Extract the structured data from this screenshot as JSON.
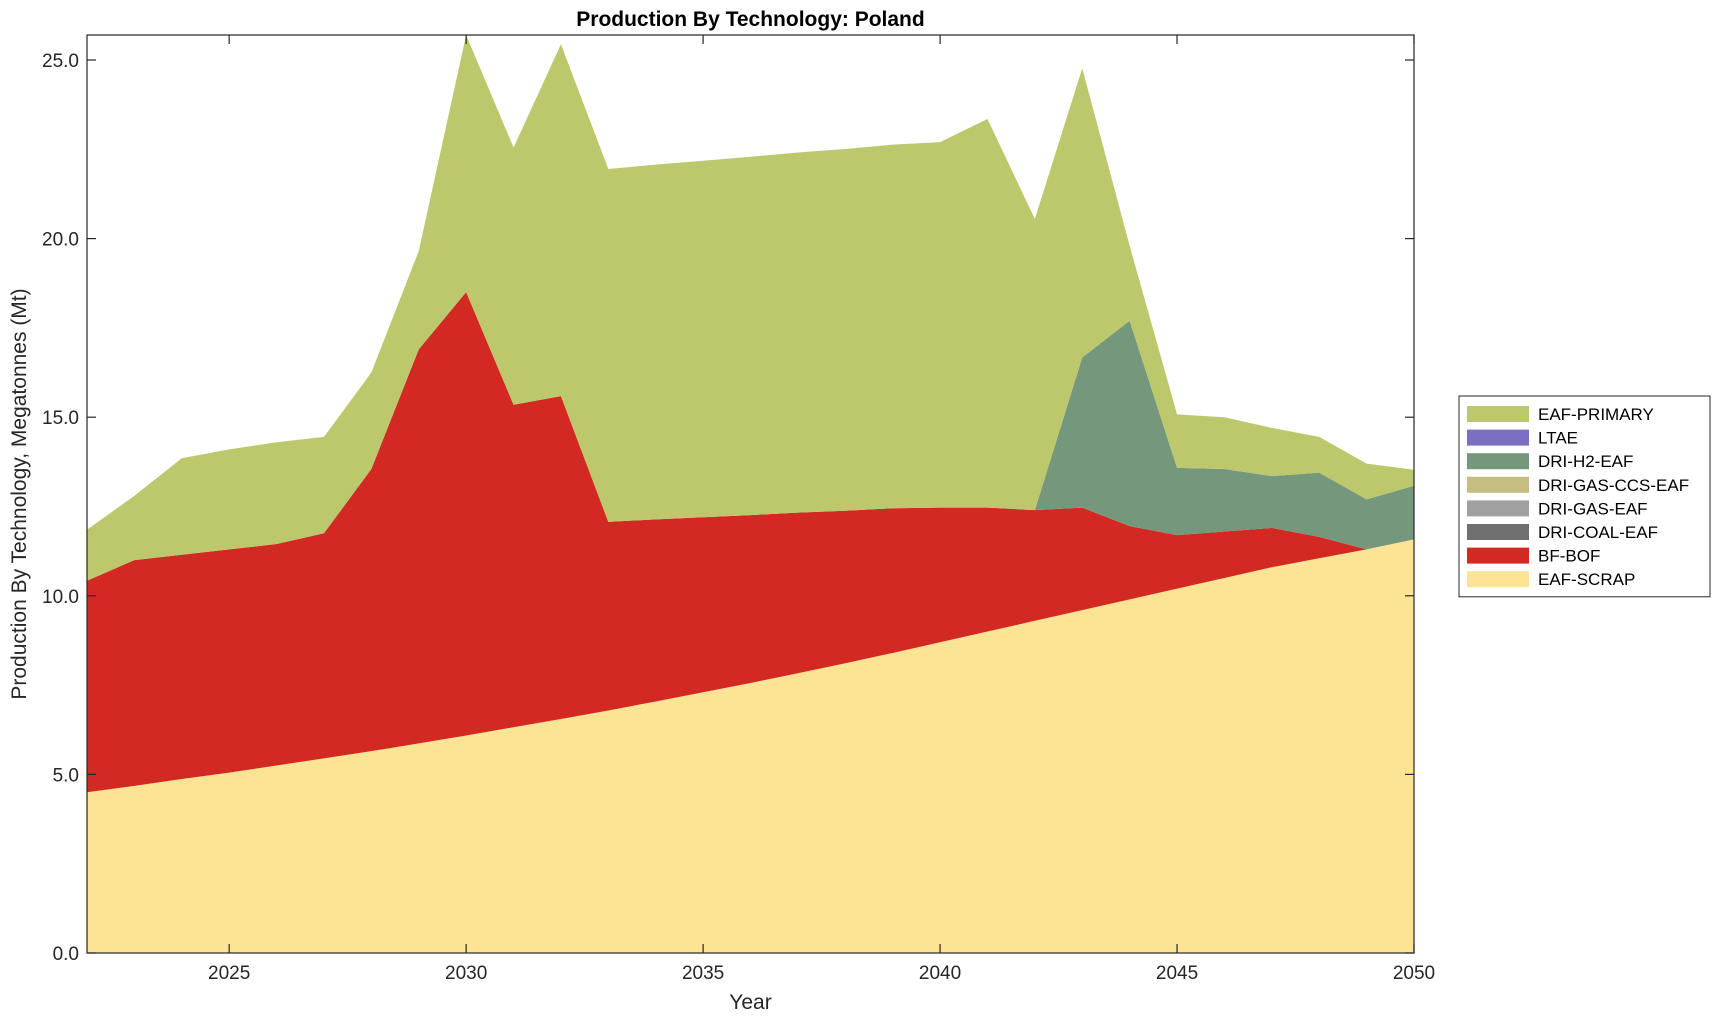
{
  "chart_data": {
    "type": "area",
    "stacked": true,
    "title": "Production By Technology: Poland",
    "xlabel": "Year",
    "ylabel": "Production By Technology, Megatonnes (Mt)",
    "xlim": [
      2022,
      2050
    ],
    "ylim": [
      0,
      25.7
    ],
    "xticks": [
      2025,
      2030,
      2035,
      2040,
      2045,
      2050
    ],
    "yticks": [
      0,
      5,
      10,
      15,
      20,
      25
    ],
    "ytick_labels": [
      "0.0",
      "5.0",
      "10.0",
      "15.0",
      "20.0",
      "25.0"
    ],
    "grid": false,
    "legend_position": "right (outside plot, vertically centered)",
    "x": [
      2022,
      2023,
      2024,
      2025,
      2026,
      2027,
      2028,
      2029,
      2030,
      2031,
      2032,
      2033,
      2034,
      2035,
      2036,
      2037,
      2038,
      2039,
      2040,
      2041,
      2042,
      2043,
      2044,
      2045,
      2046,
      2047,
      2048,
      2049,
      2050
    ],
    "series": [
      {
        "name": "EAF-SCRAP",
        "color": "#fde394",
        "values": [
          4.5,
          4.68,
          4.87,
          5.05,
          5.25,
          5.45,
          5.65,
          5.87,
          6.09,
          6.32,
          6.55,
          6.79,
          7.04,
          7.3,
          7.56,
          7.83,
          8.11,
          8.4,
          8.7,
          9.0,
          9.3,
          9.6,
          9.9,
          10.2,
          10.5,
          10.8,
          11.05,
          11.3,
          11.58
        ]
      },
      {
        "name": "BF-BOF",
        "color": "#d22a23",
        "values": [
          5.92,
          6.32,
          6.28,
          6.25,
          6.2,
          6.3,
          7.9,
          11.03,
          12.41,
          9.03,
          9.04,
          5.28,
          5.1,
          4.9,
          4.7,
          4.5,
          4.27,
          4.05,
          3.77,
          3.47,
          3.1,
          2.87,
          2.05,
          1.5,
          1.3,
          1.1,
          0.6,
          0.0,
          0.0
        ]
      },
      {
        "name": "DRI-COAL-EAF",
        "color": "#707070",
        "values": [
          0,
          0,
          0,
          0,
          0,
          0,
          0,
          0,
          0,
          0,
          0,
          0,
          0,
          0,
          0,
          0,
          0,
          0,
          0,
          0,
          0,
          0,
          0,
          0,
          0,
          0,
          0,
          0,
          0
        ]
      },
      {
        "name": "DRI-GAS-EAF",
        "color": "#a0a0a0",
        "values": [
          0,
          0,
          0,
          0,
          0,
          0,
          0,
          0,
          0,
          0,
          0,
          0,
          0,
          0,
          0,
          0,
          0,
          0,
          0,
          0,
          0,
          0,
          0,
          0,
          0,
          0,
          0,
          0,
          0
        ]
      },
      {
        "name": "DRI-GAS-CCS-EAF",
        "color": "#c5bd82",
        "values": [
          0,
          0,
          0,
          0,
          0,
          0,
          0,
          0,
          0,
          0,
          0,
          0,
          0,
          0,
          0,
          0,
          0,
          0,
          0,
          0,
          0,
          0,
          0,
          0,
          0,
          0,
          0,
          0,
          0
        ]
      },
      {
        "name": "DRI-H2-EAF",
        "color": "#75987c",
        "values": [
          0,
          0,
          0,
          0,
          0,
          0,
          0,
          0,
          0,
          0,
          0,
          0,
          0,
          0,
          0,
          0,
          0,
          0,
          0,
          0,
          0,
          4.2,
          5.75,
          1.88,
          1.75,
          1.45,
          1.8,
          1.4,
          1.5
        ]
      },
      {
        "name": "LTAE",
        "color": "#7a6fc0",
        "values": [
          0,
          0,
          0,
          0,
          0,
          0,
          0,
          0,
          0,
          0,
          0,
          0,
          0,
          0,
          0,
          0,
          0,
          0,
          0,
          0,
          0,
          0,
          0,
          0,
          0,
          0,
          0,
          0,
          0
        ]
      },
      {
        "name": "EAF-PRIMARY",
        "color": "#bdc86c",
        "values": [
          1.43,
          1.8,
          2.7,
          2.8,
          2.85,
          2.7,
          2.7,
          2.75,
          7.2,
          7.2,
          9.85,
          9.88,
          9.93,
          9.98,
          10.03,
          10.08,
          10.13,
          10.18,
          10.23,
          10.88,
          8.15,
          8.1,
          2.1,
          1.5,
          1.45,
          1.35,
          1.0,
          1.0,
          0.45
        ]
      }
    ]
  }
}
